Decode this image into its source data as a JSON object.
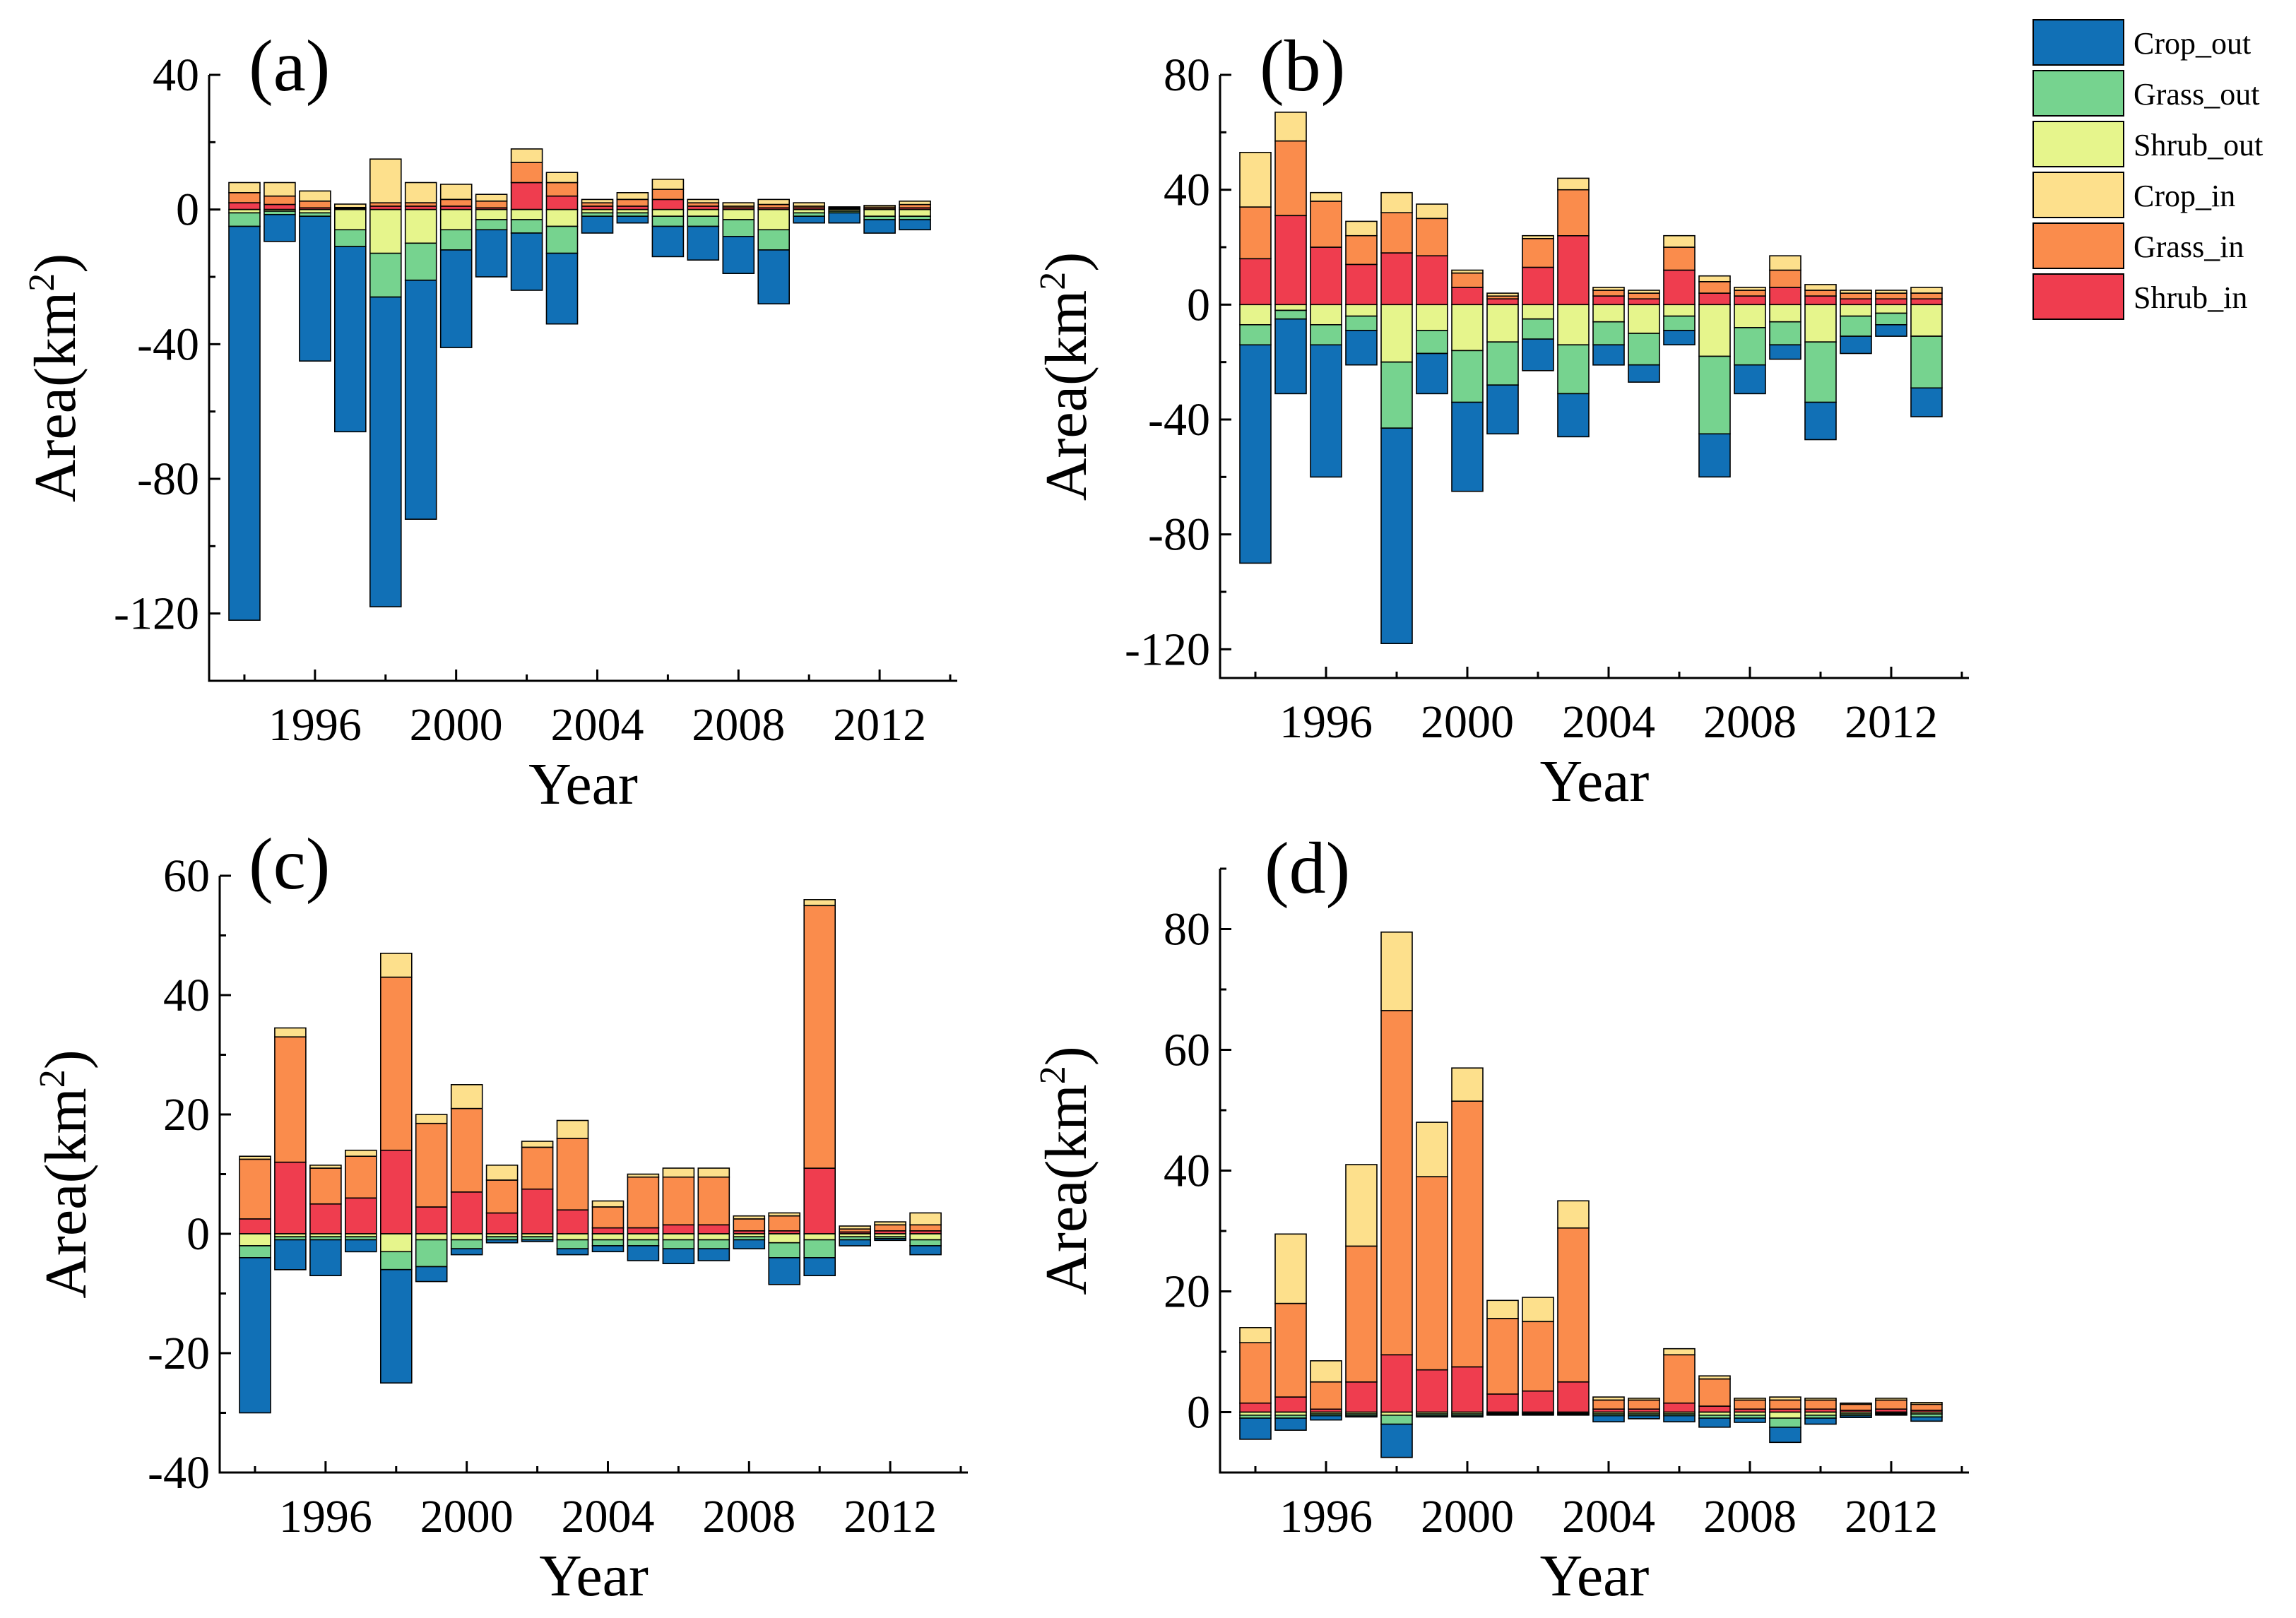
{
  "figure": {
    "xlabel": "Year",
    "ylabel_main": "Area(km",
    "ylabel_sup": "2",
    "ylabel_close": ")"
  },
  "legend": {
    "entries": [
      {
        "key": "crop_out",
        "label": "Crop_out",
        "color": "#1170b6"
      },
      {
        "key": "grass_out",
        "label": "Grass_out",
        "color": "#76d38f"
      },
      {
        "key": "shrub_out",
        "label": "Shrub_out",
        "color": "#e6f58c"
      },
      {
        "key": "crop_in",
        "label": "Crop_in",
        "color": "#fde08c"
      },
      {
        "key": "grass_in",
        "label": "Grass_in",
        "color": "#fa8c4c"
      },
      {
        "key": "shrub_in",
        "label": "Shrub_in",
        "color": "#ef3d4f"
      }
    ]
  },
  "chart_data": [
    {
      "type": "bar",
      "stacked": true,
      "title": "(a)",
      "xlabel": "Year",
      "ylabel": "Area(km2)",
      "x": [
        1994,
        1995,
        1996,
        1997,
        1998,
        1999,
        2000,
        2001,
        2002,
        2003,
        2004,
        2005,
        2006,
        2007,
        2008,
        2009,
        2010,
        2011,
        2012,
        2013
      ],
      "xlim": [
        1993,
        2014.2
      ],
      "ylim": [
        -140,
        40
      ],
      "xticks": [
        1996,
        2000,
        2004,
        2008,
        2012
      ],
      "yticks": [
        40,
        0,
        -40,
        -80,
        -120
      ],
      "series": [
        {
          "key": "shrub_in",
          "name": "Shrub_in",
          "values": [
            2,
            1.5,
            0.5,
            0.3,
            1,
            1,
            1,
            0.5,
            8,
            4,
            1,
            1,
            3,
            1,
            0.5,
            0.5,
            0.5,
            0.3,
            0.2,
            0.5
          ]
        },
        {
          "key": "grass_in",
          "name": "Grass_in",
          "values": [
            3,
            2.5,
            2,
            0.3,
            1,
            1,
            2,
            2,
            6,
            4,
            1,
            2,
            3,
            1,
            0.5,
            1,
            0.5,
            0.2,
            0.5,
            1
          ]
        },
        {
          "key": "crop_in",
          "name": "Crop_in",
          "values": [
            3,
            4,
            3,
            1,
            13,
            6,
            4.5,
            2,
            4,
            3,
            1,
            2,
            3,
            1,
            1,
            1.5,
            1,
            0.3,
            0.5,
            1
          ]
        },
        {
          "key": "shrub_out",
          "name": "Shrub_out",
          "values": [
            -1,
            -0.5,
            -1,
            -6,
            -13,
            -10,
            -6,
            -3,
            -3,
            -5,
            -1,
            -1,
            -2,
            -2,
            -3,
            -6,
            -1,
            -0.5,
            -2,
            -2
          ]
        },
        {
          "key": "grass_out",
          "name": "Grass_out",
          "values": [
            -4,
            -1,
            -1,
            -5,
            -13,
            -11,
            -6,
            -3,
            -4,
            -8,
            -1,
            -1,
            -3,
            -3,
            -5,
            -6,
            -1,
            -0.5,
            -1,
            -1
          ]
        },
        {
          "key": "crop_out",
          "name": "Crop_out",
          "values": [
            -117,
            -8,
            -43,
            -55,
            -92,
            -71,
            -29,
            -14,
            -17,
            -21,
            -5,
            -2,
            -9,
            -10,
            -11,
            -16,
            -2,
            -3,
            -4,
            -3
          ]
        }
      ]
    },
    {
      "type": "bar",
      "stacked": true,
      "title": "(b)",
      "xlabel": "Year",
      "ylabel": "Area(km2)",
      "x": [
        1994,
        1995,
        1996,
        1997,
        1998,
        1999,
        2000,
        2001,
        2002,
        2003,
        2004,
        2005,
        2006,
        2007,
        2008,
        2009,
        2010,
        2011,
        2012,
        2013
      ],
      "xlim": [
        1993,
        2014.2
      ],
      "ylim": [
        -130,
        80
      ],
      "xticks": [
        1996,
        2000,
        2004,
        2008,
        2012
      ],
      "yticks": [
        80,
        40,
        0,
        -40,
        -80,
        -120
      ],
      "series": [
        {
          "key": "shrub_in",
          "name": "Shrub_in",
          "values": [
            16,
            31,
            20,
            14,
            18,
            17,
            6,
            2,
            13,
            24,
            3,
            2,
            12,
            4,
            3,
            6,
            3,
            2,
            2,
            2
          ]
        },
        {
          "key": "grass_in",
          "name": "Grass_in",
          "values": [
            18,
            26,
            16,
            10,
            14,
            13,
            5,
            1,
            10,
            16,
            2,
            2,
            8,
            4,
            2,
            6,
            2,
            2,
            2,
            2
          ]
        },
        {
          "key": "crop_in",
          "name": "Crop_in",
          "values": [
            19,
            10,
            3,
            5,
            7,
            5,
            1,
            1,
            1,
            4,
            1,
            1,
            4,
            2,
            1,
            5,
            2,
            1,
            1,
            2
          ]
        },
        {
          "key": "shrub_out",
          "name": "Shrub_out",
          "values": [
            -7,
            -2,
            -7,
            -4,
            -20,
            -9,
            -16,
            -13,
            -5,
            -14,
            -6,
            -10,
            -4,
            -18,
            -8,
            -6,
            -13,
            -4,
            -3,
            -11
          ]
        },
        {
          "key": "grass_out",
          "name": "Grass_out",
          "values": [
            -7,
            -3,
            -7,
            -5,
            -23,
            -8,
            -18,
            -15,
            -7,
            -17,
            -8,
            -11,
            -5,
            -27,
            -13,
            -8,
            -21,
            -7,
            -4,
            -18
          ]
        },
        {
          "key": "crop_out",
          "name": "Crop_out",
          "values": [
            -76,
            -26,
            -46,
            -12,
            -75,
            -14,
            -31,
            -17,
            -11,
            -15,
            -7,
            -6,
            -5,
            -15,
            -10,
            -5,
            -13,
            -6,
            -4,
            -10
          ]
        }
      ]
    },
    {
      "type": "bar",
      "stacked": true,
      "title": "(c)",
      "xlabel": "Year",
      "ylabel": "Area(km2)",
      "x": [
        1994,
        1995,
        1996,
        1997,
        1998,
        1999,
        2000,
        2001,
        2002,
        2003,
        2004,
        2005,
        2006,
        2007,
        2008,
        2009,
        2010,
        2011,
        2012,
        2013
      ],
      "xlim": [
        1993,
        2014.2
      ],
      "ylim": [
        -40,
        60
      ],
      "xticks": [
        1996,
        2000,
        2004,
        2008,
        2012
      ],
      "yticks": [
        60,
        40,
        20,
        0,
        -20,
        -40
      ],
      "series": [
        {
          "key": "shrub_in",
          "name": "Shrub_in",
          "values": [
            2.5,
            12,
            5,
            6,
            14,
            4.5,
            7,
            3.5,
            7.5,
            4,
            1,
            1,
            1.5,
            1.5,
            0.5,
            0.5,
            11,
            0.3,
            0.5,
            0.5
          ]
        },
        {
          "key": "grass_in",
          "name": "Grass_in",
          "values": [
            10,
            21,
            6,
            7,
            29,
            14,
            14,
            5.5,
            7,
            12,
            3.5,
            8.5,
            8,
            8,
            2,
            2.5,
            44,
            0.5,
            1,
            1
          ]
        },
        {
          "key": "crop_in",
          "name": "Crop_in",
          "values": [
            0.5,
            1.5,
            0.5,
            1,
            4,
            1.5,
            4,
            2.5,
            1,
            3,
            1,
            0.5,
            1.5,
            1.5,
            0.5,
            0.5,
            1,
            0.5,
            0.5,
            2
          ]
        },
        {
          "key": "shrub_out",
          "name": "Shrub_out",
          "values": [
            -2,
            -0.5,
            -0.5,
            -0.5,
            -3,
            -1,
            -1,
            -0.5,
            -0.5,
            -1,
            -1,
            -1,
            -1,
            -1,
            -0.5,
            -1.5,
            -1,
            -0.5,
            -0.5,
            -1
          ]
        },
        {
          "key": "grass_out",
          "name": "Grass_out",
          "values": [
            -2,
            -0.5,
            -0.5,
            -0.5,
            -3,
            -4.5,
            -1.5,
            -0.5,
            -0.5,
            -1.5,
            -1,
            -1,
            -1.5,
            -1.5,
            -0.5,
            -2.5,
            -3,
            -0.5,
            -0.3,
            -1
          ]
        },
        {
          "key": "crop_out",
          "name": "Crop_out",
          "values": [
            -26,
            -5,
            -6,
            -2,
            -19,
            -2.5,
            -1,
            -0.5,
            -0.3,
            -1,
            -1,
            -2.5,
            -2.5,
            -2,
            -1.5,
            -4.5,
            -3,
            -1,
            -0.3,
            -1.5
          ]
        }
      ]
    },
    {
      "type": "bar",
      "stacked": true,
      "title": "(d)",
      "xlabel": "Year",
      "ylabel": "Area(km2)",
      "x": [
        1994,
        1995,
        1996,
        1997,
        1998,
        1999,
        2000,
        2001,
        2002,
        2003,
        2004,
        2005,
        2006,
        2007,
        2008,
        2009,
        2010,
        2011,
        2012,
        2013
      ],
      "xlim": [
        1993,
        2014.2
      ],
      "ylim": [
        -10,
        90
      ],
      "xticks": [
        1996,
        2000,
        2004,
        2008,
        2012
      ],
      "yticks": [
        80,
        60,
        40,
        20,
        0
      ],
      "series": [
        {
          "key": "shrub_in",
          "name": "Shrub_in",
          "values": [
            1.5,
            2.5,
            0.5,
            5,
            9.5,
            7,
            7.5,
            3,
            3.5,
            5,
            0.5,
            0.5,
            1.5,
            1,
            0.5,
            0.5,
            0.5,
            0.3,
            0.5,
            0.3
          ]
        },
        {
          "key": "grass_in",
          "name": "Grass_in",
          "values": [
            10,
            15.5,
            4.5,
            22.5,
            57,
            32,
            44,
            12.5,
            11.5,
            25.5,
            1.5,
            1.5,
            8,
            4.5,
            1.5,
            1.5,
            1.5,
            1,
            1.5,
            1
          ]
        },
        {
          "key": "crop_in",
          "name": "Crop_in",
          "values": [
            2.5,
            11.5,
            3.5,
            13.5,
            13,
            9,
            5.5,
            3,
            4,
            4.5,
            0.5,
            0.3,
            1,
            0.5,
            0.3,
            0.5,
            0.3,
            0.2,
            0.3,
            0.3
          ]
        },
        {
          "key": "shrub_out",
          "name": "Shrub_out",
          "values": [
            -0.5,
            -0.5,
            -0.3,
            -0.3,
            -0.5,
            -0.3,
            -0.3,
            -0.2,
            -0.2,
            -0.2,
            -0.3,
            -0.3,
            -0.3,
            -0.5,
            -0.5,
            -1,
            -0.5,
            -0.3,
            -0.2,
            -0.3
          ]
        },
        {
          "key": "grass_out",
          "name": "Grass_out",
          "values": [
            -0.5,
            -0.5,
            -0.3,
            -0.3,
            -1.5,
            -0.3,
            -0.3,
            -0.2,
            -0.2,
            -0.2,
            -0.3,
            -0.3,
            -0.3,
            -0.5,
            -0.5,
            -1.5,
            -0.5,
            -0.3,
            -0.2,
            -0.5
          ]
        },
        {
          "key": "crop_out",
          "name": "Crop_out",
          "values": [
            -3.5,
            -2,
            -0.7,
            -0.2,
            -5.5,
            -0.2,
            -0.2,
            -0.1,
            -0.1,
            -0.1,
            -1,
            -0.5,
            -1,
            -1.5,
            -0.7,
            -2.5,
            -1,
            -0.3,
            -0.1,
            -0.7
          ]
        }
      ]
    }
  ]
}
